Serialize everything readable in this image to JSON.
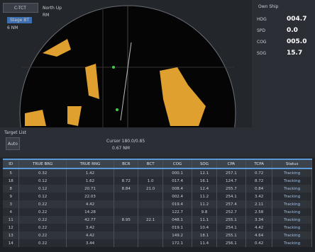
{
  "top_bar": {
    "vessel": "C-TCT",
    "mode": "Stage BT",
    "range": "6 NM",
    "orientation": "North Up",
    "motion": "RM"
  },
  "right_panel": {
    "title": "Own Ship",
    "rows": [
      {
        "label": "HDG",
        "value": "004.7"
      },
      {
        "label": "SPD",
        "value": "0.0"
      },
      {
        "label": "COG",
        "value": "005.0"
      },
      {
        "label": "SOG",
        "value": "15.7"
      }
    ]
  },
  "bottom_panel": {
    "title": "Target List",
    "mode": "Auto",
    "info": "Cursor 180.0/0.85",
    "sub": "0.67 NM"
  },
  "table": {
    "headers": [
      "ID",
      "TRUE BRG",
      "TRUE RNG",
      "BCR",
      "BCT",
      "COG",
      "SOG",
      "CPA",
      "TCPA",
      "Status"
    ],
    "rows": [
      [
        "5",
        "0.32",
        "1.42",
        "",
        "",
        "000.1",
        "12.1",
        "257.1",
        "0.72",
        "Tracking"
      ],
      [
        "18",
        "0.12",
        "1.62",
        "8.72",
        "1.0",
        "017.4",
        "16.1",
        "124.7",
        "8.72",
        "Tracking"
      ],
      [
        "8",
        "0.12",
        "20.71",
        "8.84",
        "21.0",
        "008.4",
        "12.4",
        "255.7",
        "0.84",
        "Tracking"
      ],
      [
        "9",
        "0.12",
        "22.03",
        "",
        "",
        "002.4",
        "11.2",
        "254.1",
        "3.42",
        "Tracking"
      ],
      [
        "3",
        "0.22",
        "4.42",
        "",
        "",
        "019.4",
        "11.2",
        "257.4",
        "2.11",
        "Tracking"
      ],
      [
        "4",
        "0.22",
        "14.28",
        "",
        "",
        "122.7",
        "9.8",
        "252.7",
        "2.58",
        "Tracking"
      ],
      [
        "11",
        "0.22",
        "42.77",
        "8.95",
        "22.1",
        "048.1",
        "11.1",
        "255.1",
        "3.34",
        "Tracking"
      ],
      [
        "12",
        "0.22",
        "3.42",
        "",
        "",
        "019.1",
        "10.4",
        "254.1",
        "4.42",
        "Tracking"
      ],
      [
        "13",
        "0.22",
        "4.42",
        "",
        "",
        "149.2",
        "18.1",
        "255.1",
        "4.64",
        "Tracking"
      ],
      [
        "14",
        "0.22",
        "3.44",
        "",
        "",
        "172.1",
        "11.4",
        "256.1",
        "0.42",
        "Tracking"
      ]
    ]
  }
}
